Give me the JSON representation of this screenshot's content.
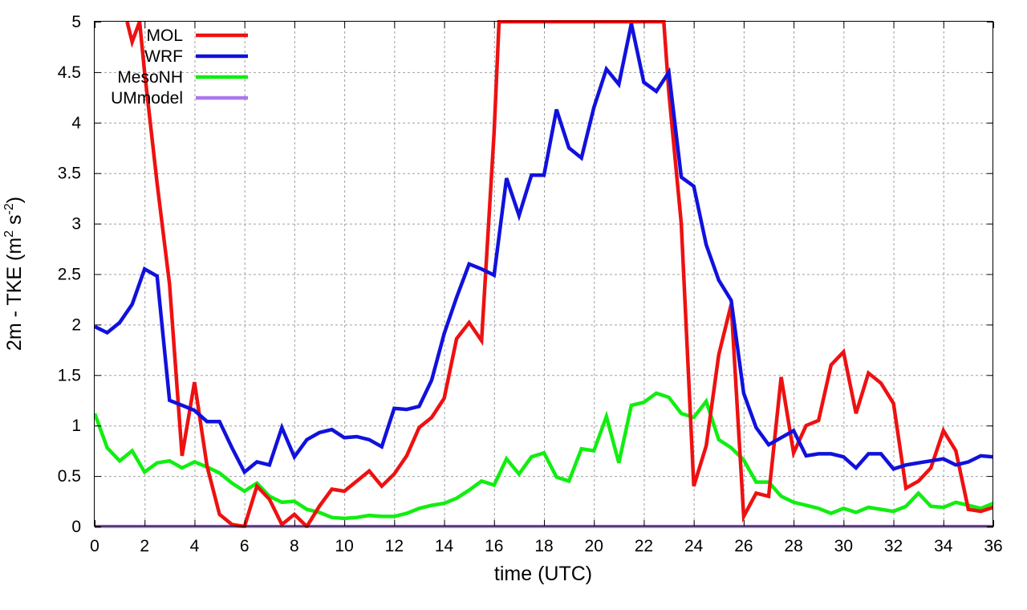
{
  "chart_data": {
    "type": "line",
    "title": "",
    "xlabel": "time (UTC)",
    "ylabel": "2m - TKE (m² s⁻²)",
    "ylabel_parts": {
      "main": "2m - TKE (m",
      "sup1": "2",
      "mid": " s",
      "sup2": "-2",
      "end": ")"
    },
    "xlim": [
      0,
      36
    ],
    "ylim": [
      0,
      5
    ],
    "xticks": [
      0,
      2,
      4,
      6,
      8,
      10,
      12,
      14,
      16,
      18,
      20,
      22,
      24,
      26,
      28,
      30,
      32,
      34,
      36
    ],
    "yticks": [
      0,
      0.5,
      1,
      1.5,
      2,
      2.5,
      3,
      3.5,
      4,
      4.5,
      5
    ],
    "ytick_labels": [
      "0",
      "0.5",
      "1",
      "1.5",
      "2",
      "2.5",
      "3",
      "3.5",
      "4",
      "4.5",
      "5"
    ],
    "grid": true,
    "legend_position": "top-left",
    "series": [
      {
        "name": "MOL",
        "color": "#ee1111",
        "x": [
          1.3,
          1.5,
          1.8,
          2.0,
          2.5,
          3.0,
          3.5,
          4.0,
          4.5,
          5.0,
          5.5,
          6.0,
          6.5,
          7.0,
          7.5,
          8.0,
          8.5,
          9.0,
          9.5,
          10.0,
          10.5,
          11.0,
          11.5,
          12.0,
          12.5,
          13.0,
          13.5,
          14.0,
          14.5,
          15.0,
          15.5,
          16.0,
          16.2,
          22.8,
          23.0,
          23.5,
          24.0,
          24.5,
          25.0,
          25.5,
          26.0,
          26.5,
          27.0,
          27.5,
          28.0,
          28.5,
          29.0,
          29.5,
          30.0,
          30.5,
          31.0,
          31.5,
          32.0,
          32.5,
          33.0,
          33.5,
          34.0,
          34.5,
          35.0,
          35.5,
          36.0
        ],
        "y": [
          5.0,
          4.8,
          5.0,
          4.5,
          3.4,
          2.4,
          0.7,
          1.43,
          0.6,
          0.12,
          0.02,
          0.0,
          0.4,
          0.27,
          0.02,
          0.12,
          0.0,
          0.2,
          0.37,
          0.35,
          0.45,
          0.55,
          0.4,
          0.52,
          0.7,
          0.98,
          1.08,
          1.27,
          1.86,
          2.02,
          1.84,
          3.9,
          5.0,
          5.0,
          4.3,
          3.0,
          0.4,
          0.8,
          1.7,
          2.2,
          0.1,
          0.33,
          0.3,
          1.48,
          0.73,
          1.0,
          1.05,
          1.6,
          1.73,
          1.12,
          1.52,
          1.42,
          1.22,
          0.38,
          0.45,
          0.58,
          0.95,
          0.75,
          0.17,
          0.15,
          0.19
        ]
      },
      {
        "name": "WRF",
        "color": "#1111dd",
        "x": [
          0,
          0.5,
          1.0,
          1.5,
          2.0,
          2.5,
          3.0,
          3.5,
          4.0,
          4.5,
          5.0,
          5.5,
          6.0,
          6.5,
          7.0,
          7.5,
          8.0,
          8.5,
          9.0,
          9.5,
          10.0,
          10.5,
          11.0,
          11.5,
          12.0,
          12.5,
          13.0,
          13.5,
          14.0,
          14.5,
          15.0,
          15.5,
          16.0,
          16.5,
          17.0,
          17.5,
          18.0,
          18.5,
          19.0,
          19.5,
          20.0,
          20.5,
          21.0,
          21.5,
          22.0,
          22.5,
          23.0,
          23.5,
          24.0,
          24.5,
          25.0,
          25.5,
          26.0,
          26.5,
          27.0,
          27.5,
          28.0,
          28.5,
          29.0,
          29.5,
          30.0,
          30.5,
          31.0,
          31.5,
          32.0,
          32.5,
          33.0,
          33.5,
          34.0,
          34.5,
          35.0,
          35.5,
          36.0
        ],
        "y": [
          1.98,
          1.92,
          2.02,
          2.2,
          2.55,
          2.48,
          1.25,
          1.2,
          1.15,
          1.04,
          1.04,
          0.78,
          0.54,
          0.64,
          0.61,
          0.98,
          0.69,
          0.86,
          0.93,
          0.96,
          0.88,
          0.89,
          0.86,
          0.79,
          1.17,
          1.16,
          1.19,
          1.45,
          1.91,
          2.27,
          2.6,
          2.55,
          2.49,
          3.45,
          3.08,
          3.48,
          3.48,
          4.13,
          3.75,
          3.65,
          4.15,
          4.53,
          4.38,
          4.98,
          4.4,
          4.31,
          4.5,
          3.46,
          3.37,
          2.79,
          2.44,
          2.24,
          1.32,
          0.98,
          0.81,
          0.88,
          0.95,
          0.7,
          0.72,
          0.72,
          0.69,
          0.58,
          0.72,
          0.72,
          0.57,
          0.61,
          0.63,
          0.65,
          0.67,
          0.61,
          0.64,
          0.7,
          0.69
        ]
      },
      {
        "name": "MesoNH",
        "color": "#11ee11",
        "x": [
          0,
          0.5,
          1.0,
          1.5,
          2.0,
          2.5,
          3.0,
          3.5,
          4.0,
          4.5,
          5.0,
          5.5,
          6.0,
          6.5,
          7.0,
          7.5,
          8.0,
          8.5,
          9.0,
          9.5,
          10.0,
          10.5,
          11.0,
          11.5,
          12.0,
          12.5,
          13.0,
          13.5,
          14.0,
          14.5,
          15.0,
          15.5,
          16.0,
          16.5,
          17.0,
          17.5,
          18.0,
          18.5,
          19.0,
          19.5,
          20.0,
          20.5,
          21.0,
          21.5,
          22.0,
          22.5,
          23.0,
          23.5,
          24.0,
          24.5,
          25.0,
          25.5,
          26.0,
          26.5,
          27.0,
          27.5,
          28.0,
          28.5,
          29.0,
          29.5,
          30.0,
          30.5,
          31.0,
          31.5,
          32.0,
          32.5,
          33.0,
          33.5,
          34.0,
          34.5,
          35.0,
          35.5,
          36.0
        ],
        "y": [
          1.12,
          0.78,
          0.65,
          0.75,
          0.54,
          0.63,
          0.65,
          0.58,
          0.64,
          0.59,
          0.53,
          0.43,
          0.35,
          0.43,
          0.3,
          0.24,
          0.25,
          0.17,
          0.14,
          0.09,
          0.08,
          0.09,
          0.11,
          0.1,
          0.1,
          0.13,
          0.18,
          0.21,
          0.23,
          0.28,
          0.36,
          0.45,
          0.41,
          0.67,
          0.52,
          0.69,
          0.73,
          0.49,
          0.45,
          0.77,
          0.75,
          1.09,
          0.63,
          1.2,
          1.23,
          1.32,
          1.28,
          1.12,
          1.08,
          1.24,
          0.86,
          0.78,
          0.66,
          0.44,
          0.44,
          0.3,
          0.24,
          0.21,
          0.18,
          0.13,
          0.18,
          0.14,
          0.19,
          0.17,
          0.15,
          0.2,
          0.33,
          0.2,
          0.19,
          0.24,
          0.21,
          0.18,
          0.23
        ]
      },
      {
        "name": "UMmodel",
        "color": "#aa77ee",
        "x": [
          0,
          36
        ],
        "y": [
          0,
          0
        ]
      }
    ]
  }
}
